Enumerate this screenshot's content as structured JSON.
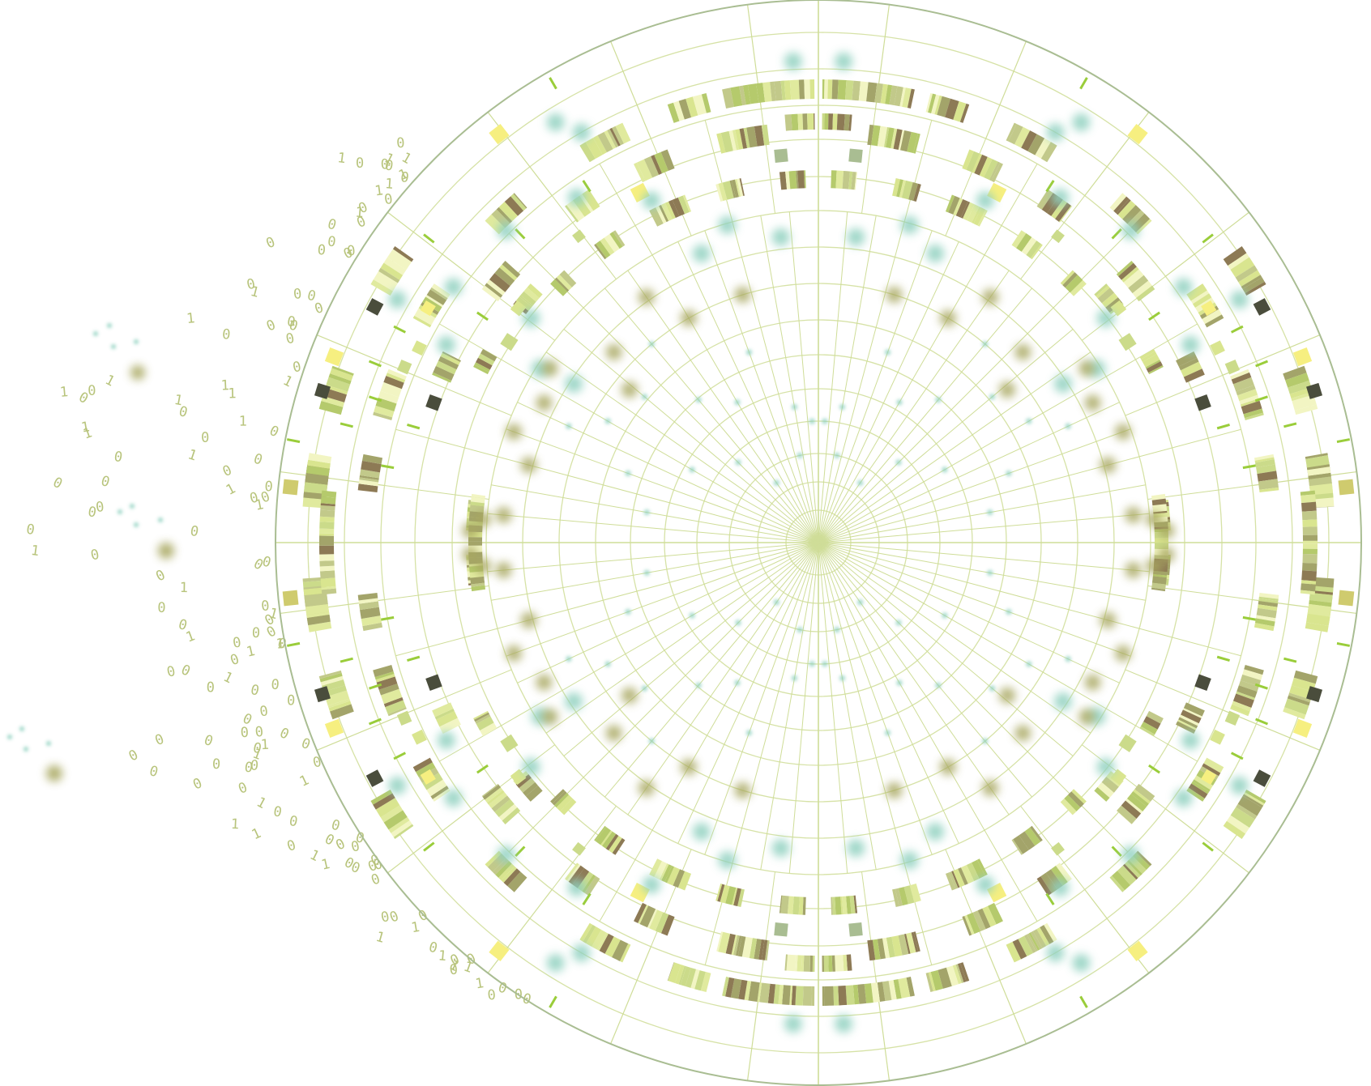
{
  "colors": {
    "background": "#ffffff",
    "outline": "#a9bd92",
    "grid": "#d6e2a6",
    "spoke": "#cfdd98",
    "band_palette": [
      "#cbdb8a",
      "#e0ea9e",
      "#b5ca6c",
      "#f2f5c3",
      "#a3a46a",
      "#d9e58f",
      "#c2c98a"
    ],
    "band_dark": "#8d7a55",
    "teal_blob": "#8fd0bf",
    "olive_blob": "#a8a761",
    "yellow_square": "#f6ef80",
    "dark_square": "#4a4d3c",
    "khaki_square": "#cfcb6e",
    "bright_green": "#9acd3a",
    "digit_color": "#b8c47c"
  },
  "icons": [
    "radial-data-visualization",
    "binary-digit-stream"
  ],
  "binary_stream": {
    "glyphs": [
      "0",
      "1"
    ]
  }
}
